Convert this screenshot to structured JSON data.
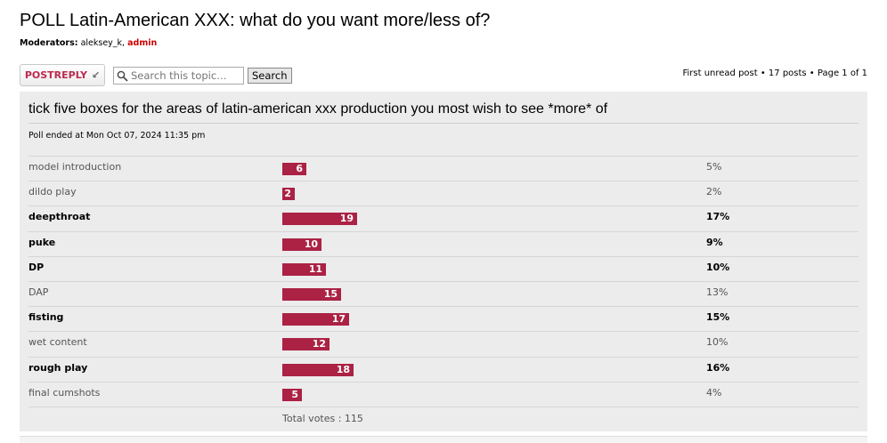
{
  "topic": {
    "title": "POLL Latin-American XXX: what do you want more/less of?",
    "moderators_label": "Moderators:",
    "moderators": [
      "aleksey_k",
      "admin"
    ],
    "moderator_separator": ","
  },
  "toolbar": {
    "post_reply_label": "POSTREPLY",
    "search_placeholder": "Search this topic…",
    "search_button_label": "Search",
    "pagination_text": "First unread post • 17 posts • Page 1 of 1"
  },
  "poll": {
    "question": "tick five boxes for the areas of latin-american xxx production you most wish to see *more* of",
    "ended_text": "Poll ended at Mon Oct 07, 2024 11:35 pm",
    "options": [
      {
        "label": "model introduction",
        "votes": "6",
        "percent": "5%",
        "voted": false
      },
      {
        "label": "dildo play",
        "votes": "2",
        "percent": "2%",
        "voted": false
      },
      {
        "label": "deepthroat",
        "votes": "19",
        "percent": "17%",
        "voted": true
      },
      {
        "label": "puke",
        "votes": "10",
        "percent": "9%",
        "voted": true
      },
      {
        "label": "DP",
        "votes": "11",
        "percent": "10%",
        "voted": true
      },
      {
        "label": "DAP",
        "votes": "15",
        "percent": "13%",
        "voted": false
      },
      {
        "label": "fisting",
        "votes": "17",
        "percent": "15%",
        "voted": true
      },
      {
        "label": "wet content",
        "votes": "12",
        "percent": "10%",
        "voted": false
      },
      {
        "label": "rough play",
        "votes": "18",
        "percent": "16%",
        "voted": true
      },
      {
        "label": "final cumshots",
        "votes": "5",
        "percent": "4%",
        "voted": false
      }
    ],
    "total_votes_text": "Total votes : 115"
  },
  "colors": {
    "bar": "#ab2244",
    "accent": "#bc2a4d",
    "admin": "#cc0000",
    "panel": "#ececec"
  }
}
